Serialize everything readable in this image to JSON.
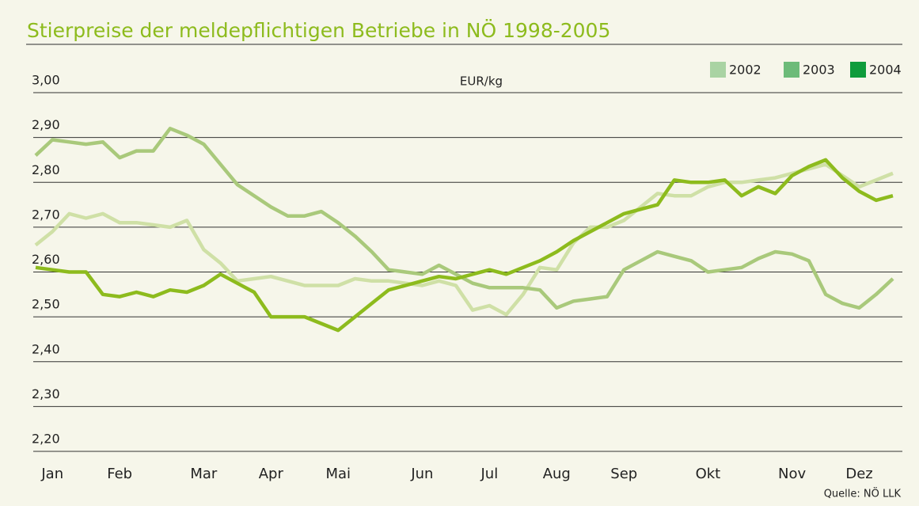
{
  "chart_data": {
    "type": "line",
    "title": "Stierpreise der meldepflichtigen Betriebe in NÖ 1998-2005",
    "y_label": "EUR/kg",
    "source": "Quelle: NÖ LLK",
    "categories": [
      null,
      "Jan",
      null,
      null,
      null,
      "Feb",
      null,
      null,
      null,
      null,
      "Mar",
      null,
      null,
      null,
      "Apr",
      null,
      null,
      null,
      "Mai",
      null,
      null,
      null,
      null,
      "Jun",
      null,
      null,
      null,
      "Jul",
      null,
      null,
      null,
      "Aug",
      null,
      null,
      null,
      "Sep",
      null,
      null,
      null,
      null,
      "Okt",
      null,
      null,
      null,
      null,
      "Nov",
      null,
      null,
      null,
      "Dez",
      null,
      null
    ],
    "ylim": [
      2.2,
      3.0
    ],
    "yticks": [
      {
        "value": 2.2,
        "label": "2,20"
      },
      {
        "value": 2.3,
        "label": "2,30"
      },
      {
        "value": 2.4,
        "label": "2,40"
      },
      {
        "value": 2.5,
        "label": "2,50"
      },
      {
        "value": 2.6,
        "label": "2,60"
      },
      {
        "value": 2.7,
        "label": "2,70"
      },
      {
        "value": 2.8,
        "label": "2,80"
      },
      {
        "value": 2.9,
        "label": "2,90"
      },
      {
        "value": 3.0,
        "label": "3,00"
      }
    ],
    "grid": true,
    "legend": "top-right",
    "series": [
      {
        "name": "2002",
        "color": "#cfe0a6",
        "legend_color": "#a9d3a3",
        "values": [
          2.66,
          2.69,
          2.73,
          2.72,
          2.73,
          2.71,
          2.71,
          2.705,
          2.7,
          2.715,
          2.65,
          2.62,
          2.58,
          2.585,
          2.59,
          2.58,
          2.57,
          2.57,
          2.57,
          2.585,
          2.58,
          2.58,
          2.575,
          2.57,
          2.58,
          2.57,
          2.515,
          2.525,
          2.505,
          2.55,
          2.61,
          2.605,
          2.665,
          2.7,
          2.7,
          2.715,
          2.745,
          2.775,
          2.77,
          2.77,
          2.79,
          2.8,
          2.8,
          2.805,
          2.81,
          2.82,
          2.83,
          2.84,
          2.815,
          2.79,
          2.805,
          2.82
        ]
      },
      {
        "name": "2003",
        "color": "#a9c97b",
        "legend_color": "#6dbb79",
        "values": [
          2.86,
          2.895,
          2.89,
          2.885,
          2.89,
          2.855,
          2.87,
          2.87,
          2.92,
          2.905,
          2.885,
          2.84,
          2.795,
          2.77,
          2.745,
          2.725,
          2.725,
          2.735,
          2.71,
          2.68,
          2.645,
          2.605,
          2.6,
          2.595,
          2.615,
          2.595,
          2.575,
          2.565,
          2.565,
          2.565,
          2.56,
          2.52,
          2.535,
          2.54,
          2.545,
          2.605,
          2.625,
          2.645,
          2.635,
          2.625,
          2.6,
          2.605,
          2.61,
          2.63,
          2.645,
          2.64,
          2.625,
          2.55,
          2.53,
          2.52,
          2.55,
          2.585
        ]
      },
      {
        "name": "2004",
        "color": "#8dbb1d",
        "legend_color": "#0f9c3c",
        "values": [
          2.61,
          2.605,
          2.6,
          2.6,
          2.55,
          2.545,
          2.555,
          2.545,
          2.56,
          2.555,
          2.57,
          2.595,
          2.575,
          2.555,
          2.5,
          2.5,
          2.5,
          2.485,
          2.47,
          2.5,
          2.53,
          2.56,
          2.57,
          2.58,
          2.59,
          2.585,
          2.595,
          2.605,
          2.595,
          2.61,
          2.625,
          2.645,
          2.67,
          2.69,
          2.71,
          2.73,
          2.74,
          2.75,
          2.805,
          2.8,
          2.8,
          2.805,
          2.77,
          2.79,
          2.775,
          2.815,
          2.835,
          2.85,
          2.81,
          2.78,
          2.76,
          2.77
        ]
      }
    ]
  }
}
